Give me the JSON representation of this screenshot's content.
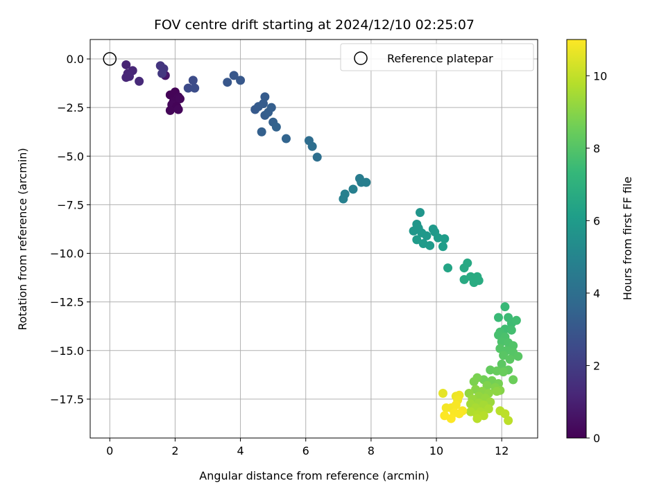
{
  "chart_data": {
    "type": "scatter",
    "title": "FOV centre drift starting at 2024/12/10 02:25:07",
    "xlabel": "Angular distance from reference (arcmin)",
    "ylabel": "Rotation from reference (arcmin)",
    "xlim": [
      -0.6,
      13.1
    ],
    "ylim": [
      -19.5,
      1.0
    ],
    "xticks": [
      0,
      2,
      4,
      6,
      8,
      10,
      12
    ],
    "yticks": [
      0.0,
      -2.5,
      -5.0,
      -7.5,
      -10.0,
      -12.5,
      -15.0,
      -17.5
    ],
    "xtick_labels": [
      "0",
      "2",
      "4",
      "6",
      "8",
      "10",
      "12"
    ],
    "ytick_labels": [
      "0.0",
      "−2.5",
      "−5.0",
      "−7.5",
      "−10.0",
      "−12.5",
      "−15.0",
      "−17.5"
    ],
    "grid": true,
    "legend": {
      "placement": "top-right",
      "entries": [
        "Reference platepar"
      ]
    },
    "reference_point": {
      "x": 0,
      "y": 0
    },
    "colorbar": {
      "label": "Hours from first FF file",
      "range": [
        0,
        11
      ],
      "ticks": [
        0,
        2,
        4,
        6,
        8,
        10
      ],
      "tick_labels": [
        "0",
        "2",
        "4",
        "6",
        "8",
        "10"
      ],
      "colormap": "viridis"
    },
    "points": [
      {
        "x": 1.85,
        "y": -1.85,
        "c": 0.1
      },
      {
        "x": 2.0,
        "y": -1.7,
        "c": 0.1
      },
      {
        "x": 2.1,
        "y": -1.95,
        "c": 0.15
      },
      {
        "x": 1.95,
        "y": -2.2,
        "c": 0.15
      },
      {
        "x": 2.15,
        "y": -2.05,
        "c": 0.2
      },
      {
        "x": 1.9,
        "y": -2.35,
        "c": 0.2
      },
      {
        "x": 2.05,
        "y": -2.45,
        "c": 0.1
      },
      {
        "x": 1.85,
        "y": -2.65,
        "c": 0.15
      },
      {
        "x": 2.1,
        "y": -2.6,
        "c": 0.2
      },
      {
        "x": 1.7,
        "y": -0.85,
        "c": 0.7
      },
      {
        "x": 0.5,
        "y": -0.3,
        "c": 1.1
      },
      {
        "x": 0.55,
        "y": -0.75,
        "c": 1.15
      },
      {
        "x": 0.7,
        "y": -0.6,
        "c": 1.2
      },
      {
        "x": 0.6,
        "y": -0.9,
        "c": 1.25
      },
      {
        "x": 0.5,
        "y": -0.95,
        "c": 1.2
      },
      {
        "x": 0.9,
        "y": -1.15,
        "c": 1.3
      },
      {
        "x": 1.55,
        "y": -0.35,
        "c": 1.7
      },
      {
        "x": 1.65,
        "y": -0.5,
        "c": 1.75
      },
      {
        "x": 1.6,
        "y": -0.75,
        "c": 1.8
      },
      {
        "x": 2.4,
        "y": -1.5,
        "c": 2.5
      },
      {
        "x": 2.55,
        "y": -1.1,
        "c": 2.55
      },
      {
        "x": 2.6,
        "y": -1.5,
        "c": 2.6
      },
      {
        "x": 3.6,
        "y": -1.2,
        "c": 3.0
      },
      {
        "x": 3.8,
        "y": -0.85,
        "c": 3.0
      },
      {
        "x": 4.0,
        "y": -1.1,
        "c": 3.05
      },
      {
        "x": 4.45,
        "y": -2.6,
        "c": 3.1
      },
      {
        "x": 4.55,
        "y": -2.45,
        "c": 3.15
      },
      {
        "x": 4.75,
        "y": -1.95,
        "c": 3.2
      },
      {
        "x": 4.7,
        "y": -2.3,
        "c": 3.2
      },
      {
        "x": 4.75,
        "y": -2.9,
        "c": 3.25
      },
      {
        "x": 4.85,
        "y": -2.75,
        "c": 3.3
      },
      {
        "x": 4.95,
        "y": -2.5,
        "c": 3.3
      },
      {
        "x": 4.65,
        "y": -3.75,
        "c": 3.35
      },
      {
        "x": 5.0,
        "y": -3.25,
        "c": 3.4
      },
      {
        "x": 5.1,
        "y": -3.5,
        "c": 3.45
      },
      {
        "x": 5.4,
        "y": -4.1,
        "c": 3.55
      },
      {
        "x": 6.1,
        "y": -4.2,
        "c": 3.9
      },
      {
        "x": 6.2,
        "y": -4.5,
        "c": 3.95
      },
      {
        "x": 6.35,
        "y": -5.05,
        "c": 4.0
      },
      {
        "x": 7.65,
        "y": -6.15,
        "c": 4.6
      },
      {
        "x": 7.7,
        "y": -6.35,
        "c": 4.65
      },
      {
        "x": 7.85,
        "y": -6.35,
        "c": 4.7
      },
      {
        "x": 7.45,
        "y": -6.7,
        "c": 4.75
      },
      {
        "x": 7.2,
        "y": -6.95,
        "c": 4.8
      },
      {
        "x": 7.15,
        "y": -7.2,
        "c": 4.8
      },
      {
        "x": 9.5,
        "y": -7.9,
        "c": 5.7
      },
      {
        "x": 9.4,
        "y": -8.5,
        "c": 5.75
      },
      {
        "x": 9.3,
        "y": -8.85,
        "c": 5.8
      },
      {
        "x": 9.45,
        "y": -8.7,
        "c": 5.8
      },
      {
        "x": 9.55,
        "y": -8.95,
        "c": 5.85
      },
      {
        "x": 9.7,
        "y": -9.1,
        "c": 5.85
      },
      {
        "x": 9.9,
        "y": -8.75,
        "c": 5.9
      },
      {
        "x": 9.95,
        "y": -8.9,
        "c": 5.9
      },
      {
        "x": 9.6,
        "y": -9.5,
        "c": 5.95
      },
      {
        "x": 9.8,
        "y": -9.6,
        "c": 5.95
      },
      {
        "x": 9.4,
        "y": -9.3,
        "c": 6.0
      },
      {
        "x": 10.05,
        "y": -9.2,
        "c": 6.0
      },
      {
        "x": 10.25,
        "y": -9.25,
        "c": 6.05
      },
      {
        "x": 10.2,
        "y": -9.65,
        "c": 6.05
      },
      {
        "x": 10.35,
        "y": -10.75,
        "c": 6.4
      },
      {
        "x": 10.85,
        "y": -10.75,
        "c": 6.6
      },
      {
        "x": 10.95,
        "y": -10.5,
        "c": 6.6
      },
      {
        "x": 10.85,
        "y": -11.35,
        "c": 6.65
      },
      {
        "x": 11.05,
        "y": -11.2,
        "c": 6.7
      },
      {
        "x": 11.25,
        "y": -11.2,
        "c": 6.7
      },
      {
        "x": 11.15,
        "y": -11.5,
        "c": 6.75
      },
      {
        "x": 11.3,
        "y": -11.4,
        "c": 6.75
      },
      {
        "x": 12.1,
        "y": -12.75,
        "c": 7.4
      },
      {
        "x": 11.9,
        "y": -13.3,
        "c": 7.45
      },
      {
        "x": 12.2,
        "y": -13.3,
        "c": 7.5
      },
      {
        "x": 12.3,
        "y": -13.6,
        "c": 7.55
      },
      {
        "x": 12.45,
        "y": -13.45,
        "c": 7.6
      },
      {
        "x": 12.1,
        "y": -13.9,
        "c": 7.6
      },
      {
        "x": 12.3,
        "y": -13.95,
        "c": 7.65
      },
      {
        "x": 11.95,
        "y": -14.05,
        "c": 7.7
      },
      {
        "x": 11.9,
        "y": -14.2,
        "c": 7.75
      },
      {
        "x": 12.1,
        "y": -14.3,
        "c": 7.8
      },
      {
        "x": 12.0,
        "y": -14.55,
        "c": 7.85
      },
      {
        "x": 12.2,
        "y": -14.6,
        "c": 7.9
      },
      {
        "x": 12.35,
        "y": -14.75,
        "c": 7.95
      },
      {
        "x": 11.95,
        "y": -14.9,
        "c": 8.0
      },
      {
        "x": 12.15,
        "y": -15.0,
        "c": 8.0
      },
      {
        "x": 12.35,
        "y": -15.1,
        "c": 8.05
      },
      {
        "x": 12.5,
        "y": -15.3,
        "c": 8.1
      },
      {
        "x": 12.05,
        "y": -15.25,
        "c": 8.1
      },
      {
        "x": 12.25,
        "y": -15.45,
        "c": 8.15
      },
      {
        "x": 12.0,
        "y": -15.7,
        "c": 8.2
      },
      {
        "x": 12.2,
        "y": -16.0,
        "c": 8.3
      },
      {
        "x": 11.65,
        "y": -16.0,
        "c": 8.35
      },
      {
        "x": 11.85,
        "y": -16.05,
        "c": 8.4
      },
      {
        "x": 12.05,
        "y": -16.1,
        "c": 8.45
      },
      {
        "x": 12.35,
        "y": -16.5,
        "c": 8.5
      },
      {
        "x": 11.45,
        "y": -16.5,
        "c": 8.6
      },
      {
        "x": 11.7,
        "y": -16.55,
        "c": 8.65
      },
      {
        "x": 11.9,
        "y": -16.7,
        "c": 8.7
      },
      {
        "x": 11.25,
        "y": -16.4,
        "c": 8.75
      },
      {
        "x": 11.15,
        "y": -16.6,
        "c": 8.8
      },
      {
        "x": 11.55,
        "y": -16.8,
        "c": 8.85
      },
      {
        "x": 11.8,
        "y": -16.9,
        "c": 8.9
      },
      {
        "x": 11.95,
        "y": -17.05,
        "c": 8.95
      },
      {
        "x": 11.2,
        "y": -17.0,
        "c": 9.0
      },
      {
        "x": 11.4,
        "y": -17.1,
        "c": 9.05
      },
      {
        "x": 11.6,
        "y": -17.2,
        "c": 9.1
      },
      {
        "x": 11.85,
        "y": -17.1,
        "c": 9.1
      },
      {
        "x": 11.0,
        "y": -17.2,
        "c": 9.15
      },
      {
        "x": 11.3,
        "y": -17.35,
        "c": 9.2
      },
      {
        "x": 11.5,
        "y": -17.45,
        "c": 9.25
      },
      {
        "x": 11.1,
        "y": -17.5,
        "c": 9.3
      },
      {
        "x": 11.65,
        "y": -17.65,
        "c": 9.35
      },
      {
        "x": 11.3,
        "y": -17.7,
        "c": 9.4
      },
      {
        "x": 11.05,
        "y": -17.75,
        "c": 9.45
      },
      {
        "x": 11.45,
        "y": -17.8,
        "c": 9.5
      },
      {
        "x": 11.2,
        "y": -17.95,
        "c": 9.55
      },
      {
        "x": 11.6,
        "y": -18.0,
        "c": 9.6
      },
      {
        "x": 11.35,
        "y": -18.15,
        "c": 9.65
      },
      {
        "x": 11.05,
        "y": -18.15,
        "c": 9.7
      },
      {
        "x": 11.25,
        "y": -18.3,
        "c": 9.75
      },
      {
        "x": 11.45,
        "y": -18.35,
        "c": 9.8
      },
      {
        "x": 11.25,
        "y": -18.5,
        "c": 9.85
      },
      {
        "x": 11.95,
        "y": -18.1,
        "c": 9.85
      },
      {
        "x": 12.1,
        "y": -18.25,
        "c": 9.9
      },
      {
        "x": 12.2,
        "y": -18.6,
        "c": 9.9
      },
      {
        "x": 10.2,
        "y": -17.2,
        "c": 10.6
      },
      {
        "x": 10.6,
        "y": -17.35,
        "c": 10.7
      },
      {
        "x": 10.7,
        "y": -17.3,
        "c": 10.75
      },
      {
        "x": 10.65,
        "y": -17.55,
        "c": 10.8
      },
      {
        "x": 10.3,
        "y": -17.95,
        "c": 10.85
      },
      {
        "x": 10.45,
        "y": -17.95,
        "c": 10.85
      },
      {
        "x": 10.6,
        "y": -17.8,
        "c": 10.9
      },
      {
        "x": 10.8,
        "y": -18.1,
        "c": 10.9
      },
      {
        "x": 10.55,
        "y": -18.2,
        "c": 10.95
      },
      {
        "x": 10.7,
        "y": -18.25,
        "c": 10.95
      },
      {
        "x": 10.25,
        "y": -18.35,
        "c": 11.0
      },
      {
        "x": 10.45,
        "y": -18.5,
        "c": 11.0
      }
    ]
  }
}
